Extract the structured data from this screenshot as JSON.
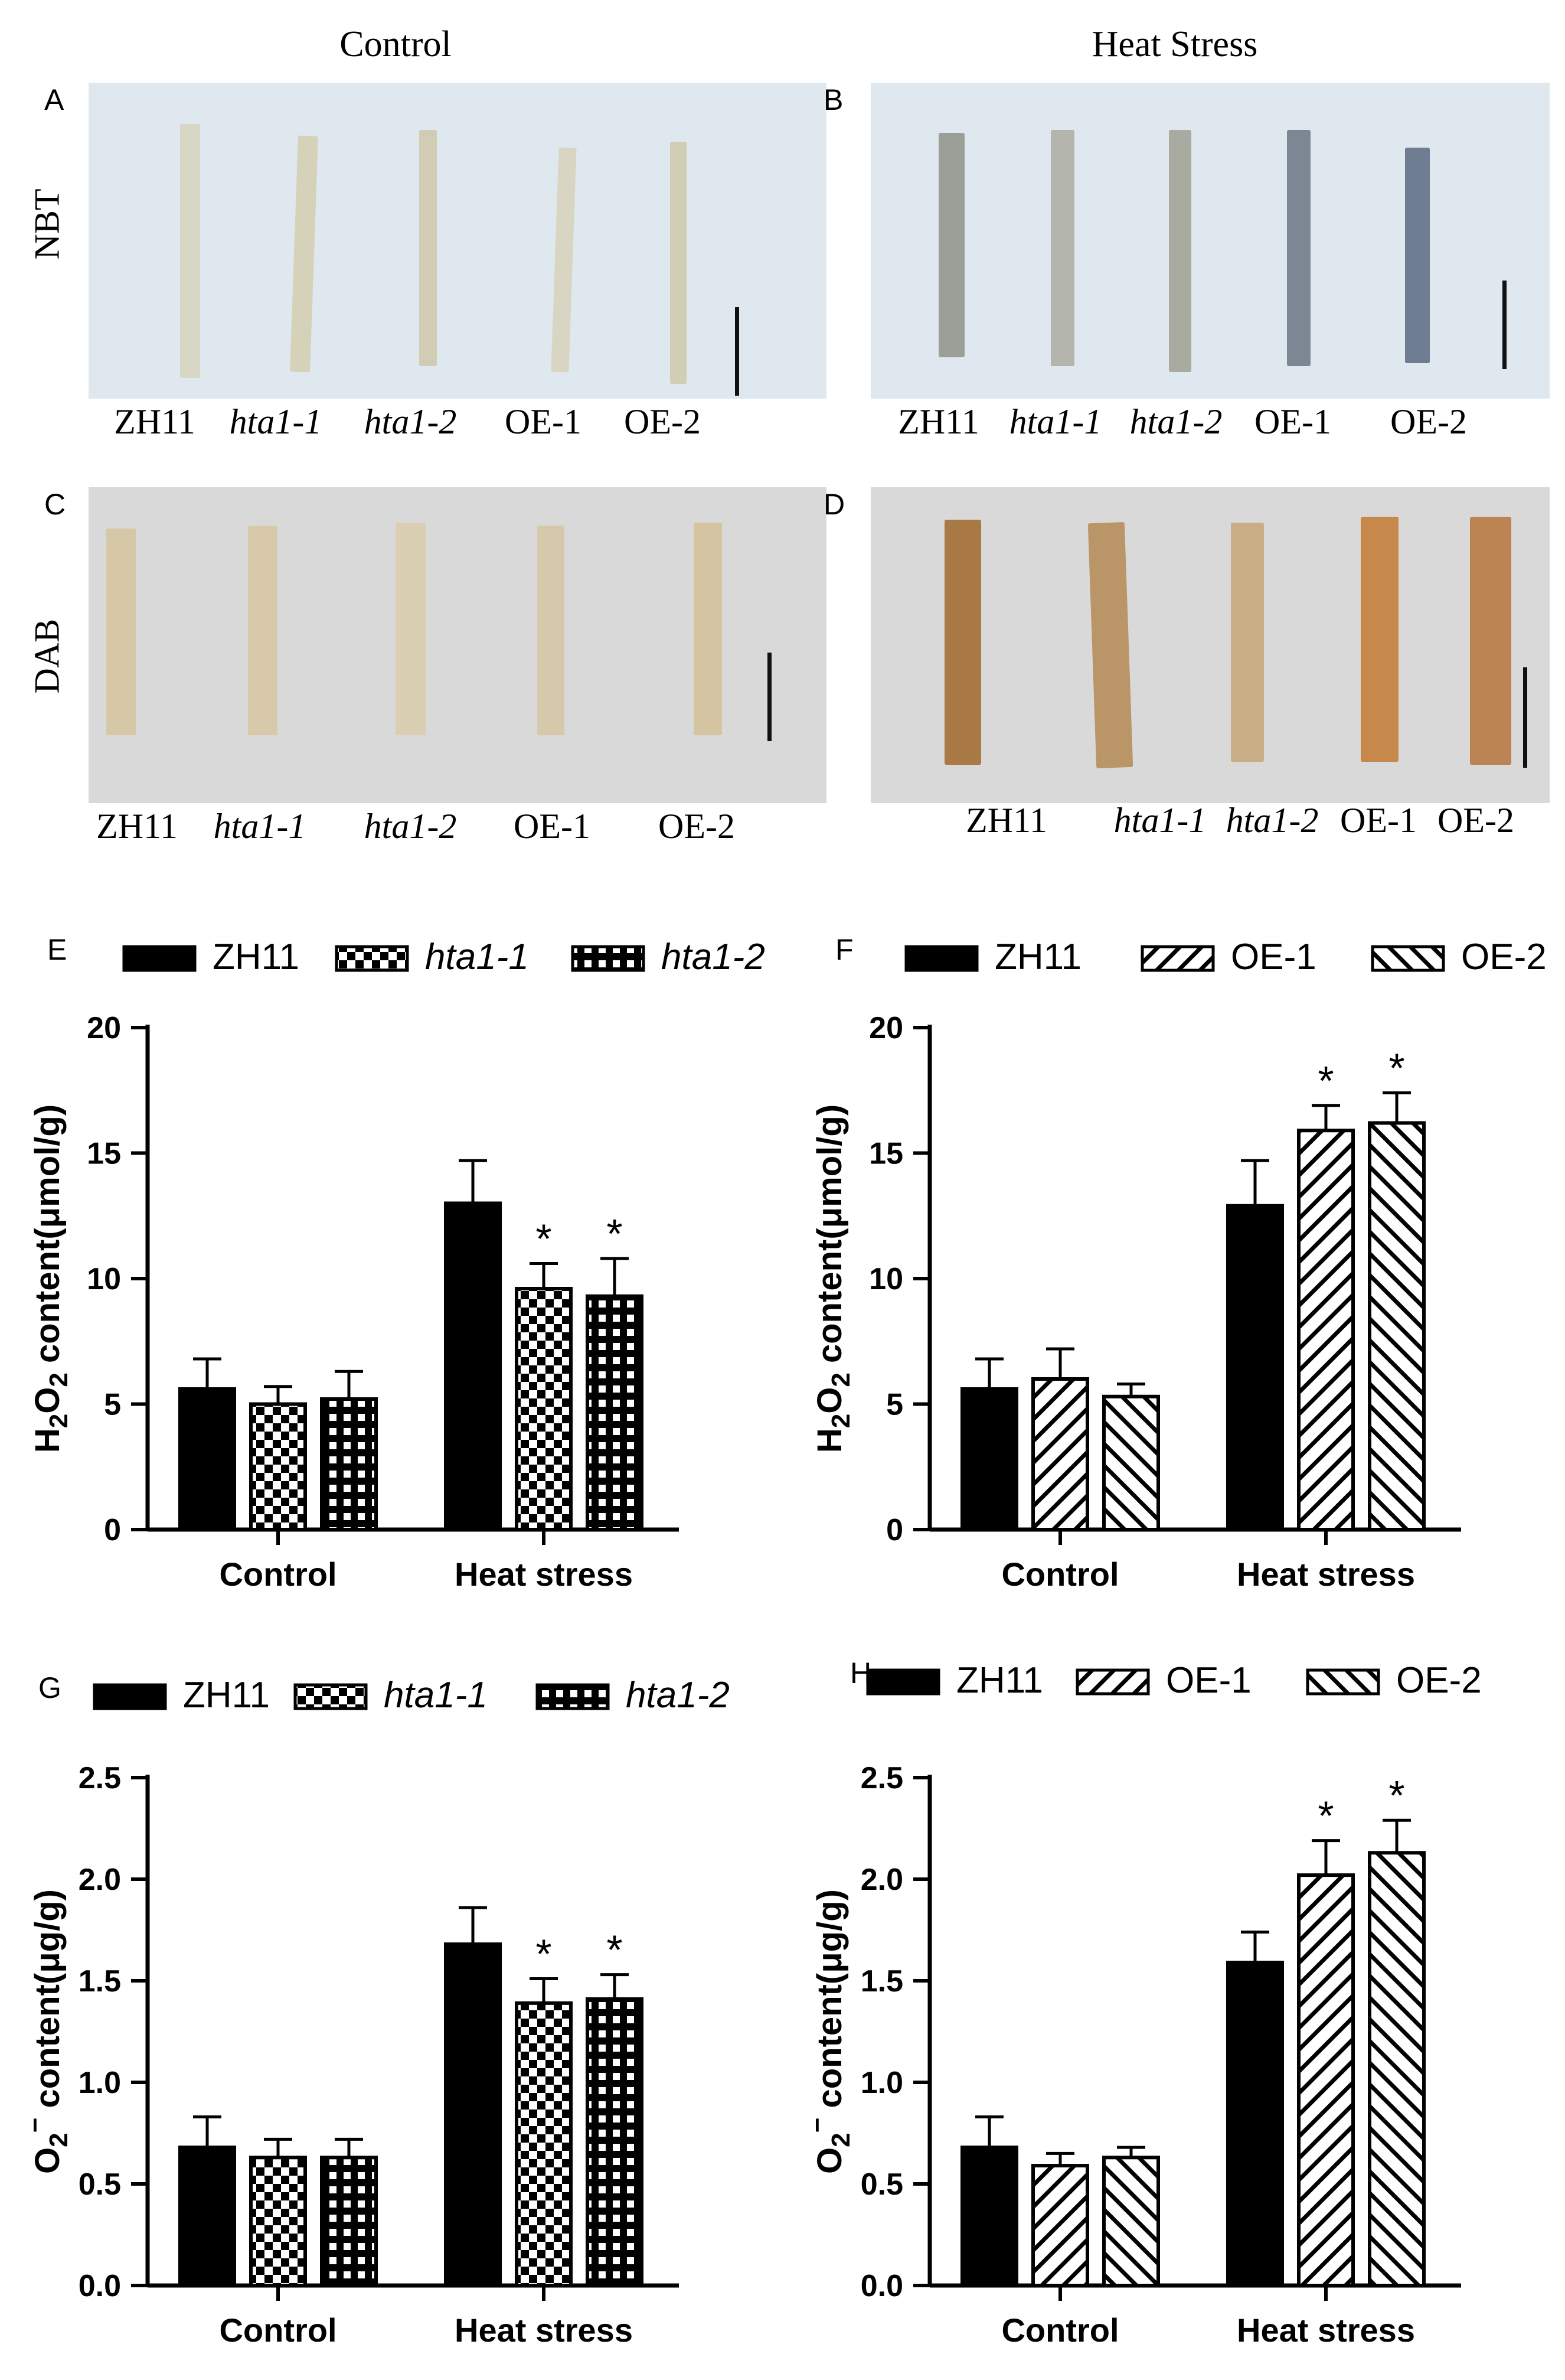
{
  "column_headers": {
    "left": "Control",
    "right": "Heat Stress"
  },
  "row_labels": {
    "nbt": "NBT",
    "dab": "DAB"
  },
  "image_panels": [
    {
      "label": "A",
      "samples": [
        "ZH11",
        "hta1-1",
        "hta1-2",
        "OE-1",
        "OE-2"
      ]
    },
    {
      "label": "B",
      "samples": [
        "ZH11",
        "hta1-1",
        "hta1-2",
        "OE-1",
        "OE-2"
      ]
    },
    {
      "label": "C",
      "samples": [
        "ZH11",
        "hta1-1",
        "hta1-2",
        "OE-1",
        "OE-2"
      ]
    },
    {
      "label": "D",
      "samples": [
        "ZH11",
        "hta1-1",
        "hta1-2",
        "OE-1",
        "OE-2"
      ]
    }
  ],
  "colors": {
    "bar_fill": "#000000",
    "nbt_bg": "#dfe8ee",
    "dab_bg": "#d9d9da"
  },
  "chart_data": [
    {
      "panel": "E",
      "type": "bar",
      "categories": [
        "Control",
        "Heat stress"
      ],
      "series": [
        {
          "name": "ZH11",
          "pattern": "solid",
          "values": [
            5.6,
            13.0
          ],
          "errors": [
            1.2,
            1.7
          ],
          "sig": [
            "",
            ""
          ]
        },
        {
          "name": "hta1-1",
          "pattern": "checker",
          "values": [
            5.0,
            9.6
          ],
          "errors": [
            0.7,
            1.0
          ],
          "sig": [
            "",
            "*"
          ]
        },
        {
          "name": "hta1-2",
          "pattern": "grid",
          "values": [
            5.2,
            9.3
          ],
          "errors": [
            1.1,
            1.5
          ],
          "sig": [
            "",
            "*"
          ]
        }
      ],
      "ylabel": "H2O2 content(μmol/g)",
      "ylim": [
        0,
        20
      ],
      "yticks": [
        "0",
        "5",
        "10",
        "15",
        "20"
      ]
    },
    {
      "panel": "F",
      "type": "bar",
      "categories": [
        "Control",
        "Heat stress"
      ],
      "series": [
        {
          "name": "ZH11",
          "pattern": "solid",
          "values": [
            5.6,
            12.9
          ],
          "errors": [
            1.2,
            1.8
          ],
          "sig": [
            "",
            ""
          ]
        },
        {
          "name": "OE-1",
          "pattern": "hatch-right",
          "values": [
            6.0,
            15.9
          ],
          "errors": [
            1.2,
            1.0
          ],
          "sig": [
            "",
            "*"
          ]
        },
        {
          "name": "OE-2",
          "pattern": "hatch-left",
          "values": [
            5.3,
            16.2
          ],
          "errors": [
            0.5,
            1.2
          ],
          "sig": [
            "",
            "*"
          ]
        }
      ],
      "ylabel": "H2O2 content(μmol/g)",
      "ylim": [
        0,
        20
      ],
      "yticks": [
        "0",
        "5",
        "10",
        "15",
        "20"
      ]
    },
    {
      "panel": "G",
      "type": "bar",
      "categories": [
        "Control",
        "Heat stress"
      ],
      "series": [
        {
          "name": "ZH11",
          "pattern": "solid",
          "values": [
            0.68,
            1.68
          ],
          "errors": [
            0.15,
            0.18
          ],
          "sig": [
            "",
            ""
          ]
        },
        {
          "name": "hta1-1",
          "pattern": "checker",
          "values": [
            0.63,
            1.39
          ],
          "errors": [
            0.09,
            0.12
          ],
          "sig": [
            "",
            "*"
          ]
        },
        {
          "name": "hta1-2",
          "pattern": "grid",
          "values": [
            0.63,
            1.41
          ],
          "errors": [
            0.09,
            0.12
          ],
          "sig": [
            "",
            "*"
          ]
        }
      ],
      "ylabel": "O2− content(μg/g)",
      "ylim": [
        0,
        2.5
      ],
      "yticks": [
        "0.0",
        "0.5",
        "1.0",
        "1.5",
        "2.0",
        "2.5"
      ]
    },
    {
      "panel": "H",
      "type": "bar",
      "categories": [
        "Control",
        "Heat stress"
      ],
      "series": [
        {
          "name": "ZH11",
          "pattern": "solid",
          "values": [
            0.68,
            1.59
          ],
          "errors": [
            0.15,
            0.15
          ],
          "sig": [
            "",
            ""
          ]
        },
        {
          "name": "OE-1",
          "pattern": "hatch-right",
          "values": [
            0.59,
            2.02
          ],
          "errors": [
            0.06,
            0.17
          ],
          "sig": [
            "",
            "*"
          ]
        },
        {
          "name": "OE-2",
          "pattern": "hatch-left",
          "values": [
            0.63,
            2.13
          ],
          "errors": [
            0.05,
            0.16
          ],
          "sig": [
            "",
            "*"
          ]
        }
      ],
      "ylabel": "O2− content(μg/g)",
      "ylim": [
        0,
        2.5
      ],
      "yticks": [
        "0.0",
        "0.5",
        "1.0",
        "1.5",
        "2.0",
        "2.5"
      ]
    }
  ]
}
